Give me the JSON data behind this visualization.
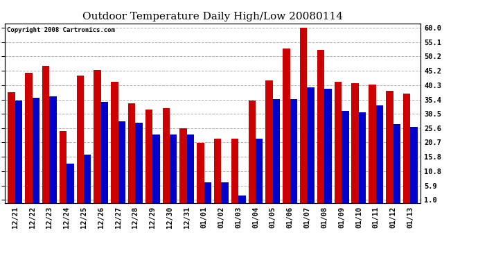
{
  "title": "Outdoor Temperature Daily High/Low 20080114",
  "copyright": "Copyright 2008 Cartronics.com",
  "dates": [
    "12/21",
    "12/22",
    "12/23",
    "12/24",
    "12/25",
    "12/26",
    "12/27",
    "12/28",
    "12/29",
    "12/30",
    "12/31",
    "01/01",
    "01/02",
    "01/03",
    "01/04",
    "01/05",
    "01/06",
    "01/07",
    "01/08",
    "01/09",
    "01/10",
    "01/11",
    "01/12",
    "01/13"
  ],
  "highs": [
    38.0,
    44.5,
    47.0,
    24.5,
    43.5,
    45.5,
    41.5,
    34.0,
    32.0,
    32.5,
    25.5,
    20.5,
    22.0,
    22.0,
    35.0,
    42.0,
    53.0,
    60.0,
    52.5,
    41.5,
    41.0,
    40.5,
    38.5,
    37.5
  ],
  "lows": [
    35.0,
    36.0,
    36.5,
    13.5,
    16.5,
    34.5,
    28.0,
    27.5,
    23.5,
    23.5,
    23.5,
    7.0,
    7.0,
    2.5,
    22.0,
    35.5,
    35.5,
    39.5,
    39.0,
    31.5,
    31.0,
    33.5,
    27.0,
    26.0
  ],
  "high_color": "#cc0000",
  "low_color": "#0000cc",
  "bg_color": "#ffffff",
  "grid_color": "#b0b0b0",
  "yticks": [
    1.0,
    5.9,
    10.8,
    15.8,
    20.7,
    25.6,
    30.5,
    35.4,
    40.3,
    45.2,
    50.2,
    55.1,
    60.0
  ],
  "ylim": [
    0,
    61.5
  ],
  "bar_width": 0.42,
  "title_fontsize": 11,
  "tick_fontsize": 7.5
}
